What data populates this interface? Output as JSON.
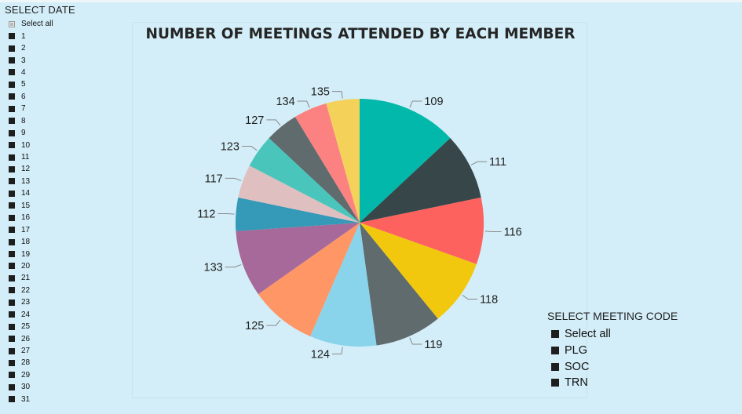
{
  "date_slicer": {
    "title": "SELECT DATE",
    "select_all_label": "Select all",
    "items": [
      "1",
      "2",
      "3",
      "4",
      "5",
      "6",
      "7",
      "8",
      "9",
      "10",
      "11",
      "12",
      "13",
      "14",
      "15",
      "16",
      "17",
      "18",
      "19",
      "20",
      "21",
      "22",
      "23",
      "24",
      "25",
      "26",
      "27",
      "28",
      "29",
      "30",
      "31"
    ]
  },
  "meeting_code_slicer": {
    "title": "SELECT MEETING CODE",
    "items": [
      "Select all",
      "PLG",
      "SOC",
      "TRN"
    ]
  },
  "chart_data": {
    "type": "pie",
    "title": "NUMBER OF MEETINGS ATTENDED BY EACH MEMBER",
    "slices": [
      {
        "label": "109",
        "value": 13.2,
        "color": "#01b8aa"
      },
      {
        "label": "111",
        "value": 8.8,
        "color": "#374649"
      },
      {
        "label": "116",
        "value": 8.8,
        "color": "#fd625e"
      },
      {
        "label": "118",
        "value": 8.8,
        "color": "#f2c80f"
      },
      {
        "label": "119",
        "value": 8.8,
        "color": "#5f6b6d"
      },
      {
        "label": "124",
        "value": 8.8,
        "color": "#8ad4eb"
      },
      {
        "label": "125",
        "value": 8.8,
        "color": "#fe9666"
      },
      {
        "label": "133",
        "value": 8.8,
        "color": "#a66999"
      },
      {
        "label": "112",
        "value": 4.4,
        "color": "#3599b8"
      },
      {
        "label": "117",
        "value": 4.4,
        "color": "#dfbfbf"
      },
      {
        "label": "123",
        "value": 4.4,
        "color": "#4ac5bb"
      },
      {
        "label": "127",
        "value": 4.4,
        "color": "#5f6b6d"
      },
      {
        "label": "134",
        "value": 4.4,
        "color": "#fb8281"
      },
      {
        "label": "135",
        "value": 4.4,
        "color": "#f4d25a"
      }
    ],
    "legend": "none"
  }
}
